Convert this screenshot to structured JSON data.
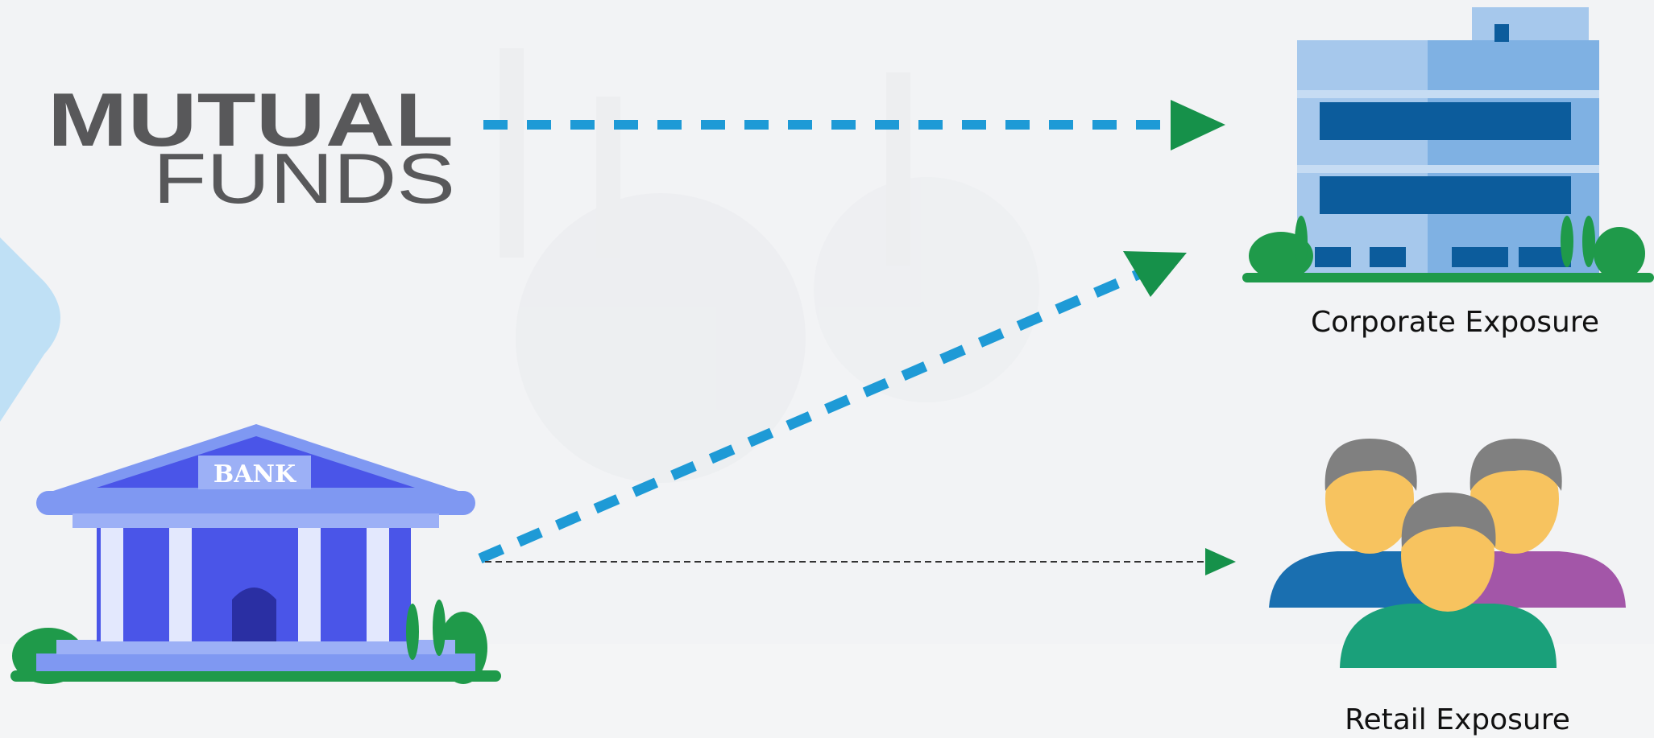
{
  "logo": {
    "line1": "MUTUAL",
    "line2": "FUNDS"
  },
  "nodes": [
    {
      "label": "BANK"
    },
    {
      "label": "Corporate Exposure"
    },
    {
      "label": "Retail Exposure"
    }
  ]
}
